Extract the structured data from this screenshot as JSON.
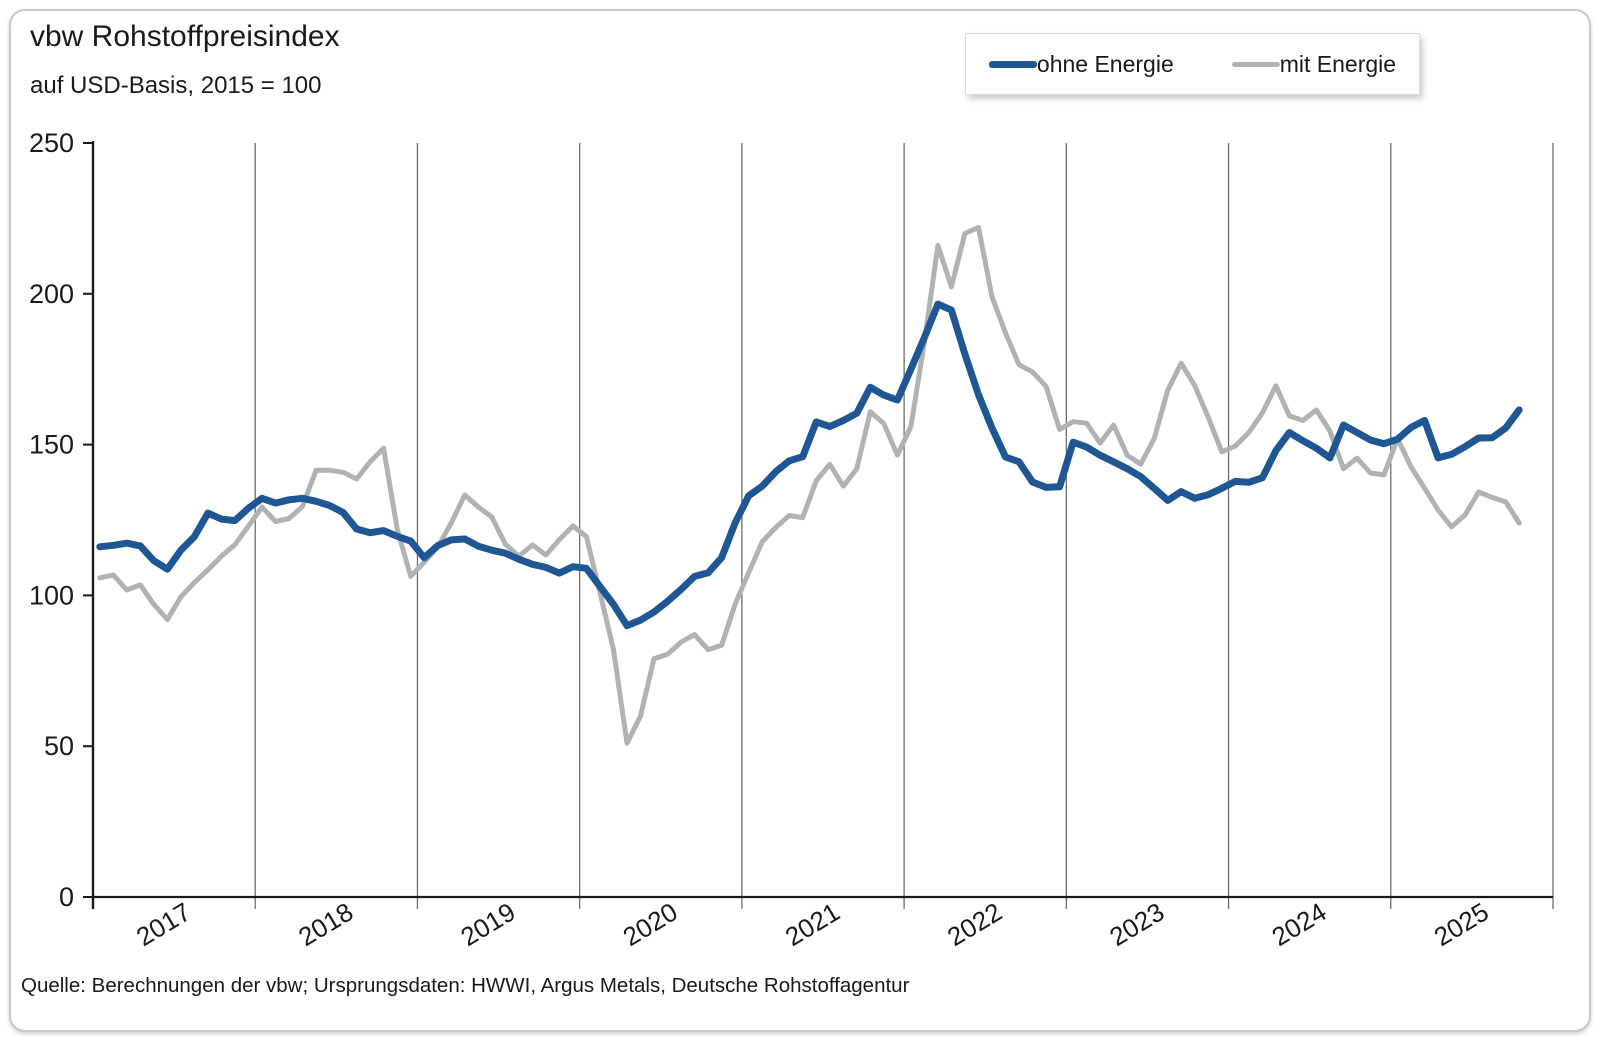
{
  "header": {
    "title": "vbw Rohstoffpreisindex",
    "subtitle": "auf USD-Basis, 2015 = 100"
  },
  "legend": [
    {
      "label": "ohne Energie",
      "color": "#1F5795",
      "swatch_height": 7
    },
    {
      "label": "mit Energie",
      "color": "#AFB3B5",
      "swatch_height": 5
    }
  ],
  "source_note": "Quelle: Berechnungen der vbw; Ursprungsdaten: HWWI, Argus Metals, Deutsche Rohstoffagentur",
  "chart_data": {
    "type": "line",
    "title": "vbw Rohstoffpreisindex",
    "subtitle": "auf USD-Basis, 2015 = 100",
    "frequency": "monthly",
    "x_start": "2017-01",
    "x_end": "2025-10",
    "x_tick_labels": [
      "2017",
      "2018",
      "2019",
      "2020",
      "2021",
      "2022",
      "2023",
      "2024",
      "2025"
    ],
    "xlabel": "",
    "ylabel": "",
    "ylim": [
      0,
      250
    ],
    "y_ticks": [
      0,
      50,
      100,
      150,
      200,
      250
    ],
    "grid": "vertical-yearly",
    "gridline_color": "#6e6e6e",
    "legend_position": "top-right",
    "series": [
      {
        "name": "ohne Energie",
        "color": "#1F5795",
        "width": 7,
        "values": [
          116.1,
          116.6,
          117.3,
          116.4,
          111.5,
          108.7,
          115,
          119.5,
          127.3,
          125.3,
          124.8,
          128.9,
          132.2,
          130.6,
          131.7,
          132.2,
          131.2,
          129.8,
          127.5,
          122,
          120.8,
          121.5,
          119.6,
          118,
          112.5,
          116.5,
          118.4,
          118.7,
          116.3,
          115,
          114,
          112,
          110.3,
          109.3,
          107.4,
          109.5,
          109,
          103,
          97,
          90,
          91.8,
          94.5,
          98,
          102,
          106.3,
          107.5,
          112.5,
          124,
          133,
          136.2,
          141,
          144.6,
          146,
          157.5,
          156,
          158,
          160.4,
          169,
          166.4,
          164.8,
          175,
          185.5,
          196.6,
          194.6,
          180,
          166.5,
          155.5,
          145.9,
          144.3,
          137.6,
          135.8,
          136,
          150.8,
          149.2,
          146.5,
          144.3,
          142,
          139.4,
          135.5,
          131.5,
          134.4,
          132.2,
          133.4,
          135.5,
          137.8,
          137.5,
          139,
          148,
          154,
          151.3,
          148.8,
          145.6,
          156.5,
          154,
          151.5,
          150.3,
          151.8,
          155.7,
          158,
          145.6,
          146.8,
          149.3,
          152.2,
          152.3,
          155.5,
          161.5
        ]
      },
      {
        "name": "mit Energie",
        "color": "#AFB3B5",
        "width": 5,
        "values": [
          105.8,
          106.8,
          101.8,
          103.5,
          97,
          92,
          99.5,
          104.3,
          108.5,
          113,
          116.8,
          123,
          129.3,
          124.5,
          125.5,
          129.5,
          141.5,
          141.5,
          140.8,
          138.6,
          144.3,
          148.8,
          122,
          106.3,
          111,
          116,
          124,
          133.3,
          129.3,
          126,
          117,
          113,
          116.7,
          113.4,
          118.5,
          123,
          119.5,
          101,
          82,
          51,
          60,
          79,
          80.5,
          84.5,
          87,
          82,
          83.5,
          97,
          107.5,
          117.8,
          122.5,
          126.5,
          125.8,
          138,
          143.5,
          136.2,
          142,
          160.9,
          157,
          146.5,
          156,
          184,
          216,
          202.3,
          220,
          222,
          199,
          187,
          176.5,
          174.1,
          169.3,
          155,
          157.6,
          157.1,
          150.5,
          156.5,
          146.5,
          143.5,
          152,
          168,
          177,
          169.5,
          159,
          147.6,
          149.5,
          154,
          160.5,
          169.5,
          159.5,
          158,
          161.5,
          154.5,
          142,
          145.5,
          140.6,
          140,
          152,
          142.6,
          135.5,
          128.3,
          122.7,
          126.7,
          134.3,
          132.5,
          131,
          124
        ]
      }
    ]
  }
}
